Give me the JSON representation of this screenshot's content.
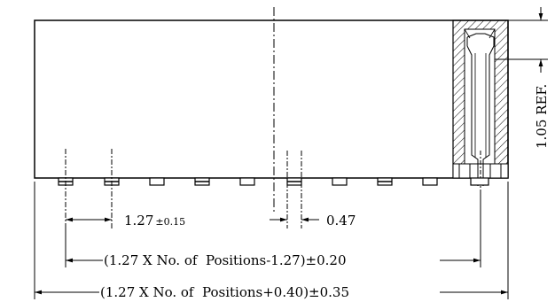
{
  "drawing": {
    "pin_pitch_label": "1.27",
    "pin_pitch_tol": "±0.15",
    "pin_width_label": "0.47",
    "row_length_label": "(1.27 X No. of  Positions-1.27)±0.20",
    "body_length_label": "(1.27 X No. of  Positions+0.40)±0.35",
    "ref_label": "1.05 REF.",
    "pin_count_visible": 10,
    "line_color": "#000000"
  }
}
